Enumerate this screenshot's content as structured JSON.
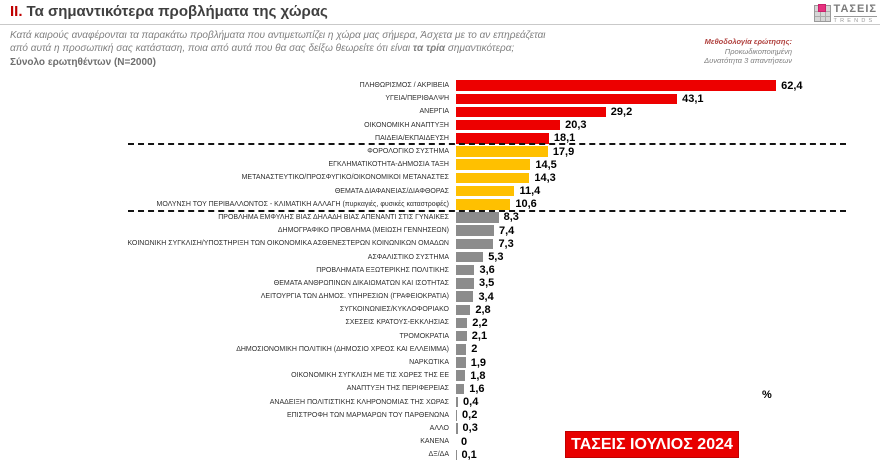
{
  "header": {
    "numeral": "II.",
    "title": "Τα σημαντικότερα προβλήματα της χώρας"
  },
  "subtitle": {
    "line1": "Κατά καιρούς αναφέρονται τα παρακάτω προβλήματα που αντιμετωπίζει η χώρα μας σήμερα, Άσχετα με το αν επηρεάζεται",
    "line2_pre": "από αυτά η προσωπική σας κατάσταση, ποια από αυτά που θα σας δείξω θεωρείτε ότι είναι ",
    "line2_bold": "τα τρία",
    "line2_post": " σημαντικότερα;",
    "survey_base": "Σύνολο ερωτηθέντων (N=2000)"
  },
  "methodology": {
    "heading": "Μεθοδολογία ερώτησης:",
    "line1": "Προκωδικοποιημένη",
    "line2": "Δυνατότητα 3 απαντήσεων"
  },
  "logo": {
    "name": "ΤΑΣΕΙΣ",
    "sub": "TRENDS"
  },
  "footer": {
    "percent_label": "%",
    "badge": "ΤΑΣΕΙΣ ΙΟΥΛΙΟΣ 2024"
  },
  "colors": {
    "red": "#ed0000",
    "yellow": "#ffc000",
    "gray": "#8c8c8c"
  },
  "chart_data": {
    "type": "bar",
    "orientation": "horizontal",
    "unit": "%",
    "xlim": [
      0,
      65
    ],
    "title": "Τα σημαντικότερα προβλήματα της χώρας",
    "legend": "none",
    "grid": false,
    "separators_after_item": [
      5,
      10
    ],
    "items": [
      {
        "label": "ΠΛΗΘΩΡΙΣΜΟΣ / ΑΚΡΙΒΕΙΑ",
        "value": 62.4,
        "display": "62,4",
        "group": "red"
      },
      {
        "label": "ΥΓΕΙΑ/ΠΕΡΙΘΑΛΨΗ",
        "value": 43.1,
        "display": "43,1",
        "group": "red"
      },
      {
        "label": "ΑΝΕΡΓΙΑ",
        "value": 29.2,
        "display": "29,2",
        "group": "red"
      },
      {
        "label": "ΟΙΚΟΝΟΜΙΚΗ ΑΝΑΠΤΥΞΗ",
        "value": 20.3,
        "display": "20,3",
        "group": "red"
      },
      {
        "label": "ΠΑΙΔΕΙΑ/ΕΚΠΑΙΔΕΥΣΗ",
        "value": 18.1,
        "display": "18,1",
        "group": "red"
      },
      {
        "label": "ΦΟΡΟΛΟΓΙΚΟ ΣΥΣΤΗΜΑ",
        "value": 17.9,
        "display": "17,9",
        "group": "yellow"
      },
      {
        "label": "ΕΓΚΛΗΜΑΤΙΚΟΤΗΤΑ-ΔΗΜΟΣΙΑ ΤΑΞΗ",
        "value": 14.5,
        "display": "14,5",
        "group": "yellow"
      },
      {
        "label": "ΜΕΤΑΝΑΣΤΕΥΤΙΚΟ/ΠΡΟΣΦΥΓΙΚΟ/ΟΙΚΟΝΟΜΙΚΟΙ ΜΕΤΑΝΑΣΤΕΣ",
        "value": 14.3,
        "display": "14,3",
        "group": "yellow"
      },
      {
        "label": "ΘΕΜΑΤΑ ΔΙΑΦΑΝΕΙΑΣ/ΔΙΑΦΘΟΡΑΣ",
        "value": 11.4,
        "display": "11,4",
        "group": "yellow"
      },
      {
        "label": "ΜΟΛΥΝΣΗ ΤΟΥ ΠΕΡΙΒΑΛΛΟΝΤΟΣ - ΚΛΙΜΑΤΙΚΗ ΑΛΛΑΓΗ (πυρκαγιές, φυσικές καταστροφές)",
        "value": 10.6,
        "display": "10,6",
        "group": "yellow"
      },
      {
        "label": "ΠΡΟΒΛΗΜΑ ΕΜΦΥΛΗΣ ΒΙΑΣ ΔΗΛΑΔΗ ΒΙΑΣ ΑΠΕΝΑΝΤΙ ΣΤΙΣ ΓΥΝΑΙΚΕΣ",
        "value": 8.3,
        "display": "8,3",
        "group": "gray"
      },
      {
        "label": "ΔΗΜΟΓΡΑΦΙΚΟ ΠΡΟΒΛΗΜΑ (ΜΕΙΩΣΗ ΓΕΝΝΗΣΕΩΝ)",
        "value": 7.4,
        "display": "7,4",
        "group": "gray"
      },
      {
        "label": "ΚΟΙΝΩΝΙΚΗ ΣΥΓΚΛΙΣΗ/ΥΠΟΣΤΗΡΙΞΗ ΤΩΝ ΟΙΚΟΝΟΜΙΚΑ ΑΣΘΕΝΕΣΤΕΡΩΝ ΚΟΙΝΩΝΙΚΩΝ ΟΜΑΔΩΝ",
        "value": 7.3,
        "display": "7,3",
        "group": "gray"
      },
      {
        "label": "ΑΣΦΑΛΙΣΤΙΚΟ ΣΥΣΤΗΜΑ",
        "value": 5.3,
        "display": "5,3",
        "group": "gray"
      },
      {
        "label": "ΠΡΟΒΛΗΜΑΤΑ ΕΞΩΤΕΡΙΚΗΣ ΠΟΛΙΤΙΚΗΣ",
        "value": 3.6,
        "display": "3,6",
        "group": "gray"
      },
      {
        "label": "ΘΕΜΑΤΑ ΑΝΘΡΩΠΙΝΩΝ ΔΙΚΑΙΩΜΑΤΩΝ ΚΑΙ ΙΣΟΤΗΤΑΣ",
        "value": 3.5,
        "display": "3,5",
        "group": "gray"
      },
      {
        "label": "ΛΕΙΤΟΥΡΓΙΑ ΤΩΝ ΔΗΜΟΣ. ΥΠΗΡΕΣΙΩΝ (ΓΡΑΦΕΙΟΚΡΑΤΙΑ)",
        "value": 3.4,
        "display": "3,4",
        "group": "gray"
      },
      {
        "label": "ΣΥΓΚΟΙΝΩΝΙΕΣ/ΚΥΚΛΟΦΟΡΙΑΚΟ",
        "value": 2.8,
        "display": "2,8",
        "group": "gray"
      },
      {
        "label": "ΣΧΕΣΕΙΣ ΚΡΑΤΟΥΣ-ΕΚΚΛΗΣΙΑΣ",
        "value": 2.2,
        "display": "2,2",
        "group": "gray"
      },
      {
        "label": "ΤΡΟΜΟΚΡΑΤΙΑ",
        "value": 2.1,
        "display": "2,1",
        "group": "gray"
      },
      {
        "label": "ΔΗΜΟΣΙΟΝΟΜΙΚΗ ΠΟΛΙΤΙΚΗ (ΔΗΜΟΣΙΟ ΧΡΕΟΣ ΚΑΙ ΕΛΛΕΙΜΜΑ)",
        "value": 2.0,
        "display": "2",
        "group": "gray"
      },
      {
        "label": "ΝΑΡΚΩΤΙΚΑ",
        "value": 1.9,
        "display": "1,9",
        "group": "gray"
      },
      {
        "label": "ΟΙΚΟΝΟΜΙΚΗ ΣΥΓΚΛΙΣΗ ΜΕ ΤΙΣ ΧΩΡΕΣ ΤΗΣ ΕΕ",
        "value": 1.8,
        "display": "1,8",
        "group": "gray"
      },
      {
        "label": "ΑΝΑΠΤΥΞΗ ΤΗΣ ΠΕΡΙΦΕΡΕΙΑΣ",
        "value": 1.6,
        "display": "1,6",
        "group": "gray"
      },
      {
        "label": "ΑΝΑΔΕΙΞΗ ΠΟΛΙΤΙΣΤΙΚΗΣ ΚΛΗΡΟΝΟΜΙΑΣ ΤΗΣ ΧΩΡΑΣ",
        "value": 0.4,
        "display": "0,4",
        "group": "gray"
      },
      {
        "label": "ΕΠΙΣΤΡΟΦΗ ΤΩΝ ΜΑΡΜΑΡΩΝ ΤΟΥ ΠΑΡΘΕΝΩΝΑ",
        "value": 0.2,
        "display": "0,2",
        "group": "gray"
      },
      {
        "label": "ΑΛΛΟ",
        "value": 0.3,
        "display": "0,3",
        "group": "gray"
      },
      {
        "label": "ΚΑΝΕΝΑ",
        "value": 0,
        "display": "0",
        "group": "gray"
      },
      {
        "label": "ΔΞ/ΔΑ",
        "value": 0.1,
        "display": "0,1",
        "group": "gray"
      }
    ]
  }
}
